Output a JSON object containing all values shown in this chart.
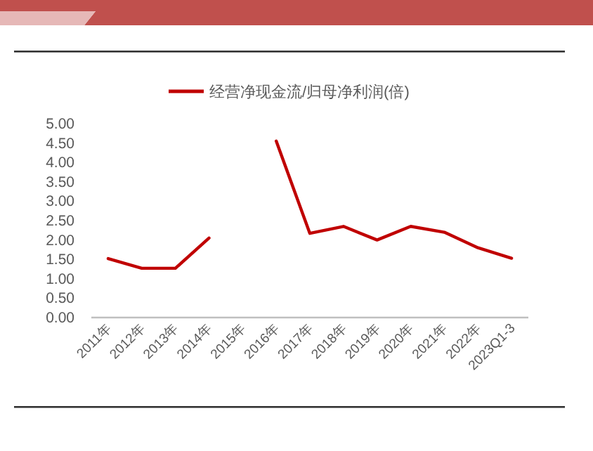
{
  "chart_data": {
    "type": "line",
    "categories": [
      "2011年",
      "2012年",
      "2013年",
      "2014年",
      "2015年",
      "2016年",
      "2017年",
      "2018年",
      "2019年",
      "2020年",
      "2021年",
      "2022年",
      "2023Q1-3"
    ],
    "series": [
      {
        "name": "经营净现金流/归母净利润(倍)",
        "color": "#c00000",
        "values": [
          1.52,
          1.27,
          1.27,
          2.05,
          null,
          4.55,
          2.17,
          2.35,
          2.0,
          2.35,
          2.2,
          1.8,
          1.53
        ]
      }
    ],
    "ylim": [
      0,
      5
    ],
    "yticks": [
      {
        "value": 0,
        "label": "0.00"
      },
      {
        "value": 0.5,
        "label": "0.50"
      },
      {
        "value": 1,
        "label": "1.00"
      },
      {
        "value": 1.5,
        "label": "1.50"
      },
      {
        "value": 2,
        "label": "2.00"
      },
      {
        "value": 2.5,
        "label": "2.50"
      },
      {
        "value": 3,
        "label": "3.00"
      },
      {
        "value": 3.5,
        "label": "3.50"
      },
      {
        "value": 4,
        "label": "4.00"
      },
      {
        "value": 4.5,
        "label": "4.50"
      },
      {
        "value": 5,
        "label": "5.00"
      }
    ],
    "grid": false,
    "legend": "top",
    "marker": "none",
    "line_style": "solid"
  }
}
